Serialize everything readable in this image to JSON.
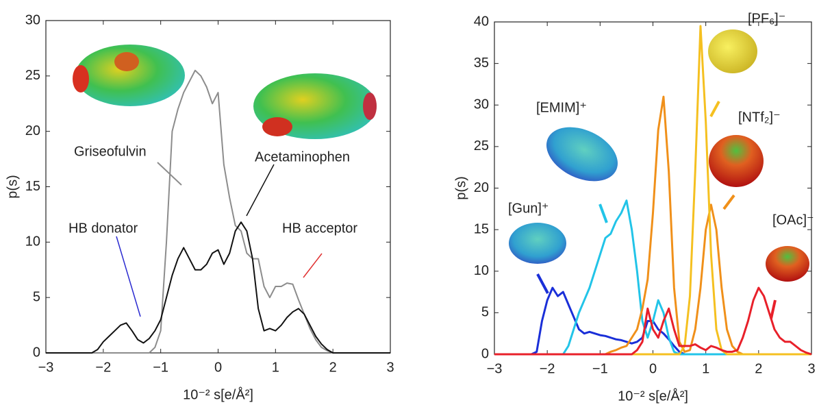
{
  "chart_data": [
    {
      "type": "line",
      "xlabel": "10⁻² s[e/Å²]",
      "ylabel": "p(s)",
      "xlim": [
        -3,
        3
      ],
      "ylim": [
        0,
        30
      ],
      "xticks": [
        {
          "value": -3,
          "label": "−3"
        },
        {
          "value": -2,
          "label": "−2"
        },
        {
          "value": -1,
          "label": "−1"
        },
        0,
        1,
        2,
        3
      ],
      "yticks": [
        0,
        5,
        10,
        15,
        20,
        25,
        30
      ],
      "x": [
        -3,
        -2.9,
        -2.8,
        -2.7,
        -2.6,
        -2.5,
        -2.4,
        -2.3,
        -2.2,
        -2.1,
        -2,
        -1.9,
        -1.8,
        -1.7,
        -1.6,
        -1.5,
        -1.4,
        -1.3,
        -1.2,
        -1.1,
        -1,
        -0.9,
        -0.8,
        -0.7,
        -0.6,
        -0.5,
        -0.4,
        -0.3,
        -0.2,
        -0.1,
        0,
        0.1,
        0.2,
        0.3,
        0.4,
        0.5,
        0.6,
        0.7,
        0.8,
        0.9,
        1,
        1.1,
        1.2,
        1.3,
        1.4,
        1.5,
        1.6,
        1.7,
        1.8,
        1.9,
        2,
        2.1,
        2.2,
        2.3,
        2.4,
        2.5,
        2.6,
        2.7,
        2.8,
        2.9,
        3
      ],
      "series": [
        {
          "name": "Griseofulvin",
          "color": "#8c8c8c",
          "values": [
            0,
            0,
            0,
            0,
            0,
            0,
            0,
            0,
            0,
            0,
            0,
            0,
            0,
            0,
            0,
            0,
            0,
            0,
            0,
            0.5,
            2,
            10,
            20,
            22,
            23.5,
            24.5,
            25.5,
            25,
            24,
            22.5,
            23.5,
            17,
            14,
            11.5,
            11,
            9,
            8.5,
            8.5,
            6,
            5,
            6,
            6,
            6.3,
            6.2,
            4.8,
            3.5,
            2.2,
            1.2,
            0.5,
            0.2,
            0,
            0,
            0,
            0,
            0,
            0,
            0,
            0,
            0,
            0,
            0
          ]
        },
        {
          "name": "Acetaminophen",
          "color": "#111111",
          "values": [
            0,
            0,
            0,
            0,
            0,
            0,
            0,
            0,
            0,
            0.3,
            1,
            1.5,
            2,
            2.5,
            2.7,
            2,
            1.2,
            0.9,
            1.3,
            2,
            3,
            5,
            7,
            8.5,
            9.5,
            8.5,
            7.5,
            7.5,
            8,
            9,
            9.3,
            8,
            9,
            11,
            11.8,
            11,
            8.5,
            4,
            2,
            2.2,
            2,
            2.5,
            3.2,
            3.7,
            4,
            3.5,
            2.5,
            1.5,
            0.8,
            0.3,
            0,
            0,
            0,
            0,
            0,
            0,
            0,
            0,
            0,
            0,
            0
          ]
        }
      ],
      "annotations": [
        {
          "text": "HB donator",
          "color": "#2a2ad0"
        },
        {
          "text": "HB acceptor",
          "color": "#e03030"
        }
      ]
    },
    {
      "type": "line",
      "xlabel": "10⁻² s[e/Å²]",
      "ylabel": "p(s)",
      "xlim": [
        -3,
        3
      ],
      "ylim": [
        0,
        40
      ],
      "xticks": [
        {
          "value": -3,
          "label": "−3"
        },
        {
          "value": -2,
          "label": "−2"
        },
        {
          "value": -1,
          "label": "−1"
        },
        0,
        1,
        2,
        3
      ],
      "yticks": [
        0,
        5,
        10,
        15,
        20,
        25,
        30,
        35,
        40
      ],
      "x": [
        -3,
        -2.9,
        -2.8,
        -2.7,
        -2.6,
        -2.5,
        -2.4,
        -2.3,
        -2.2,
        -2.1,
        -2,
        -1.9,
        -1.8,
        -1.7,
        -1.6,
        -1.5,
        -1.4,
        -1.3,
        -1.2,
        -1.1,
        -1,
        -0.9,
        -0.8,
        -0.7,
        -0.6,
        -0.5,
        -0.4,
        -0.3,
        -0.2,
        -0.1,
        0,
        0.1,
        0.2,
        0.3,
        0.4,
        0.5,
        0.6,
        0.7,
        0.8,
        0.9,
        1,
        1.1,
        1.2,
        1.3,
        1.4,
        1.5,
        1.6,
        1.7,
        1.8,
        1.9,
        2,
        2.1,
        2.2,
        2.3,
        2.4,
        2.5,
        2.6,
        2.7,
        2.8,
        2.9,
        3
      ],
      "series": [
        {
          "name": "[Gun]⁺",
          "color": "#1a2fd8",
          "values": [
            0,
            0,
            0,
            0,
            0,
            0,
            0,
            0,
            0.3,
            4,
            6.5,
            8,
            7,
            7.5,
            6,
            4.5,
            3,
            2.5,
            2.7,
            2.5,
            2.3,
            2.2,
            2,
            1.8,
            1.7,
            1.5,
            1.3,
            1.5,
            2,
            4,
            4,
            3,
            2.5,
            1.8,
            1,
            0.3,
            0,
            0,
            0,
            0,
            0,
            0,
            0,
            0,
            0,
            0,
            0,
            0,
            0,
            0,
            0,
            0,
            0,
            0,
            0,
            0,
            0,
            0,
            0,
            0,
            0
          ]
        },
        {
          "name": "[EMIM]⁺",
          "color": "#22c4e8",
          "values": [
            0,
            0,
            0,
            0,
            0,
            0,
            0,
            0,
            0,
            0,
            0,
            0,
            0,
            0,
            1,
            3,
            5,
            6.5,
            8,
            10,
            12,
            14,
            14.5,
            16,
            17,
            18.5,
            15,
            10,
            4,
            2,
            4,
            6.5,
            5,
            2,
            0.3,
            0,
            0,
            0,
            0,
            0,
            0,
            0,
            0,
            0,
            0,
            0,
            0,
            0,
            0,
            0,
            0,
            0,
            0,
            0,
            0,
            0,
            0,
            0,
            0,
            0,
            0
          ]
        },
        {
          "name": "[NTf₂]⁻",
          "color": "#f0901a",
          "values": [
            0,
            0,
            0,
            0,
            0,
            0,
            0,
            0,
            0,
            0,
            0,
            0,
            0,
            0,
            0,
            0,
            0,
            0,
            0,
            0,
            0,
            0,
            0.3,
            0.5,
            0.8,
            1,
            2,
            3,
            5.5,
            9,
            17,
            27,
            31,
            22,
            8,
            1.5,
            0.3,
            0.5,
            3,
            8,
            15,
            18,
            15,
            8,
            3,
            1,
            0.3,
            0,
            0,
            0,
            0,
            0,
            0,
            0,
            0,
            0,
            0,
            0,
            0,
            0,
            0
          ]
        },
        {
          "name": "[PF₆]⁻",
          "color": "#f5c020",
          "values": [
            0,
            0,
            0,
            0,
            0,
            0,
            0,
            0,
            0,
            0,
            0,
            0,
            0,
            0,
            0,
            0,
            0,
            0,
            0,
            0,
            0,
            0,
            0,
            0,
            0,
            0,
            0,
            0,
            0,
            0,
            0,
            0,
            0,
            0,
            0,
            0,
            1,
            7,
            22,
            39.5,
            28,
            12,
            3,
            0.5,
            0,
            0,
            0,
            0,
            0,
            0,
            0,
            0,
            0,
            0,
            0,
            0,
            0,
            0,
            0,
            0,
            0
          ]
        },
        {
          "name": "[OAc]⁻",
          "color": "#e8202a",
          "values": [
            0,
            0,
            0,
            0,
            0,
            0,
            0,
            0,
            0,
            0,
            0,
            0,
            0,
            0,
            0,
            0,
            0,
            0,
            0,
            0,
            0,
            0,
            0,
            0,
            0,
            0,
            0,
            0.5,
            1.5,
            5.5,
            3,
            2,
            4,
            5.5,
            3,
            1,
            1,
            1,
            1.2,
            0.8,
            0.5,
            1,
            0.8,
            0.5,
            0.3,
            0.3,
            0.5,
            2,
            4,
            6.5,
            8,
            7,
            5,
            3,
            2,
            1.5,
            1.5,
            1,
            0.5,
            0.2,
            0
          ]
        }
      ]
    }
  ]
}
